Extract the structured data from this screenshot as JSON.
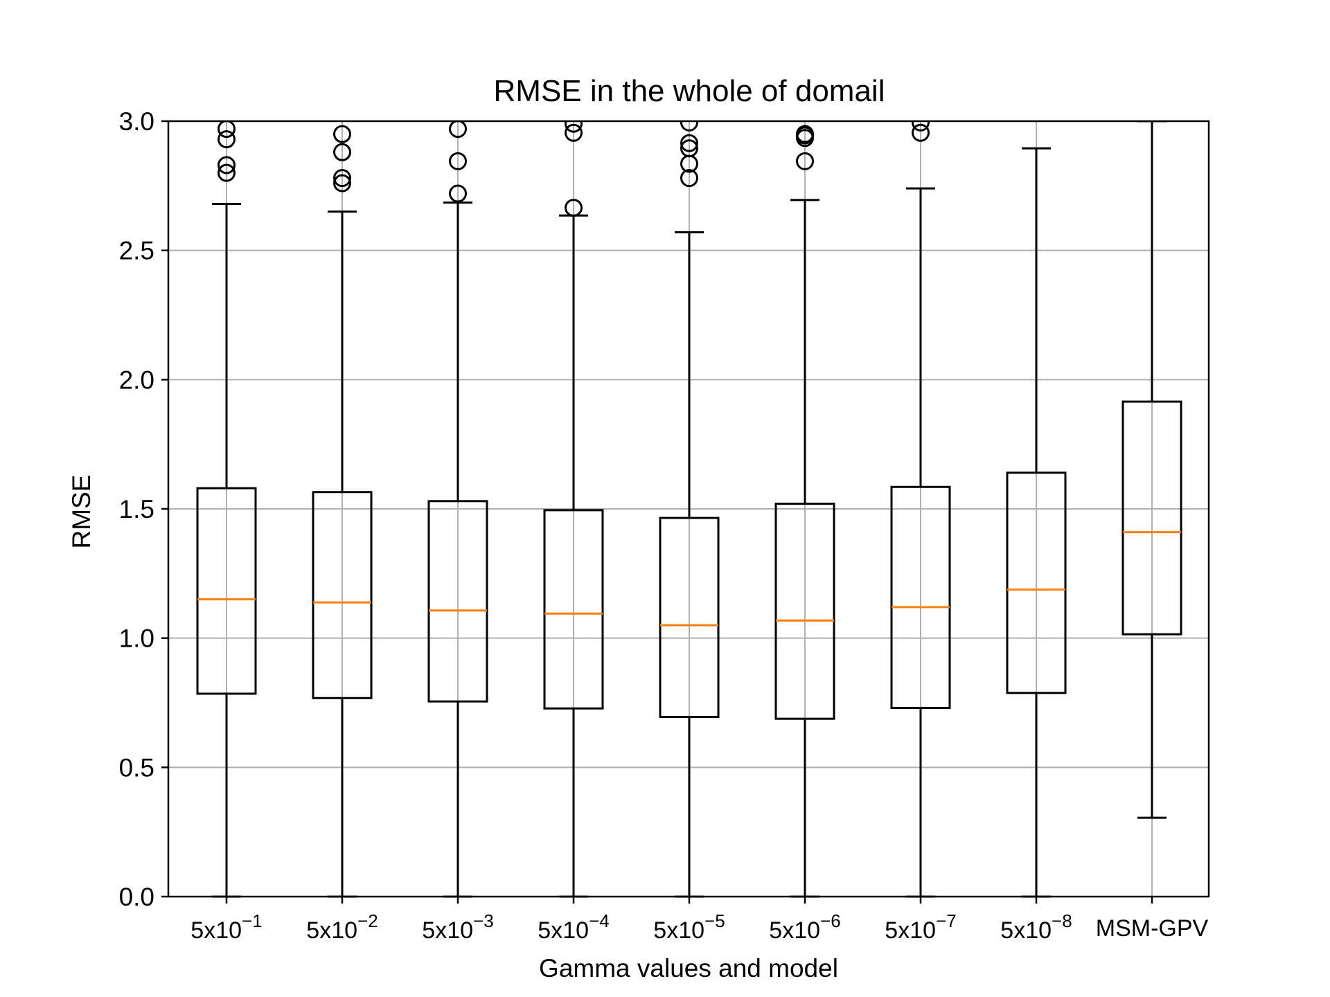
{
  "chart_data": {
    "type": "boxplot",
    "title": "RMSE in the whole of domail",
    "xlabel": "Gamma values and model",
    "ylabel": "RMSE",
    "ylim": [
      0.0,
      3.0
    ],
    "yticks": [
      "0.0",
      "0.5",
      "1.0",
      "1.5",
      "2.0",
      "2.5",
      "3.0"
    ],
    "ytick_values": [
      0.0,
      0.5,
      1.0,
      1.5,
      2.0,
      2.5,
      3.0
    ],
    "grid": true,
    "categories": [
      {
        "base": "5x10",
        "exp": "−1"
      },
      {
        "base": "5x10",
        "exp": "−2"
      },
      {
        "base": "5x10",
        "exp": "−3"
      },
      {
        "base": "5x10",
        "exp": "−4"
      },
      {
        "base": "5x10",
        "exp": "−5"
      },
      {
        "base": "5x10",
        "exp": "−6"
      },
      {
        "base": "5x10",
        "exp": "−7"
      },
      {
        "base": "5x10",
        "exp": "−8"
      },
      {
        "base": "MSM-GPV",
        "exp": ""
      }
    ],
    "boxes": [
      {
        "whislo": 0.0,
        "q1": 0.785,
        "median": 1.15,
        "q3": 1.58,
        "whishi": 2.68,
        "fliers": [
          2.8,
          2.83,
          2.93,
          2.97
        ]
      },
      {
        "whislo": 0.0,
        "q1": 0.768,
        "median": 1.138,
        "q3": 1.565,
        "whishi": 2.65,
        "fliers": [
          2.76,
          2.78,
          2.88,
          2.95
        ]
      },
      {
        "whislo": 0.0,
        "q1": 0.755,
        "median": 1.107,
        "q3": 1.53,
        "whishi": 2.685,
        "fliers": [
          2.72,
          2.845,
          2.97
        ]
      },
      {
        "whislo": 0.0,
        "q1": 0.728,
        "median": 1.095,
        "q3": 1.495,
        "whishi": 2.635,
        "fliers": [
          2.665,
          2.955,
          2.99
        ]
      },
      {
        "whislo": 0.0,
        "q1": 0.695,
        "median": 1.05,
        "q3": 1.465,
        "whishi": 2.57,
        "fliers": [
          2.78,
          2.835,
          2.895,
          2.915,
          2.995
        ]
      },
      {
        "whislo": 0.0,
        "q1": 0.688,
        "median": 1.068,
        "q3": 1.52,
        "whishi": 2.695,
        "fliers": [
          2.845,
          2.935,
          2.945,
          2.95
        ]
      },
      {
        "whislo": 0.0,
        "q1": 0.73,
        "median": 1.12,
        "q3": 1.585,
        "whishi": 2.74,
        "fliers": [
          2.955,
          2.995
        ]
      },
      {
        "whislo": 0.0,
        "q1": 0.788,
        "median": 1.188,
        "q3": 1.64,
        "whishi": 2.895,
        "fliers": []
      },
      {
        "whislo": 0.305,
        "q1": 1.015,
        "median": 1.41,
        "q3": 1.915,
        "whishi": 3.0,
        "fliers": []
      }
    ],
    "colors": {
      "box": "#000000",
      "median": "#ff7f0e",
      "grid": "#b0b0b0"
    }
  }
}
